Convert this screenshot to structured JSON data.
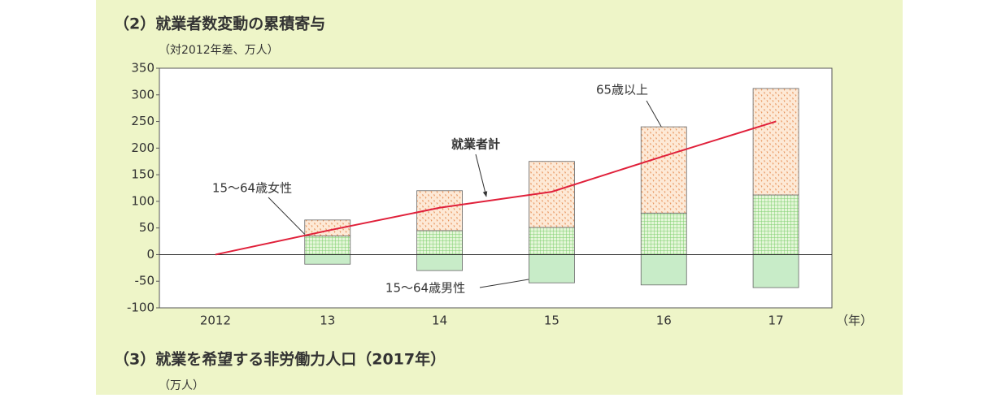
{
  "chart_data": {
    "type": "bar",
    "stacked": true,
    "title": "（2）就業者数変動の累積寄与",
    "subtitle": "（対2012年差、万人）",
    "x_unit": "（年）",
    "next_title": "（3）就業を希望する非労働力人口（2017年）",
    "next_subtitle": "（万人）",
    "categories": [
      "2012",
      "13",
      "14",
      "15",
      "16",
      "17"
    ],
    "ylim": [
      -100,
      350
    ],
    "yticks": [
      350,
      300,
      250,
      200,
      150,
      100,
      50,
      0,
      -50,
      -100
    ],
    "series": [
      {
        "name": "15〜64歳男性",
        "color": "#c8ecc8",
        "pattern": "plain",
        "values": [
          0,
          -18,
          -30,
          -53,
          -57,
          -62
        ]
      },
      {
        "name": "15〜64歳女性",
        "color": "#8fd88f",
        "pattern": "grid",
        "values": [
          0,
          35,
          45,
          51,
          78,
          112
        ]
      },
      {
        "name": "65歳以上",
        "color": "#e8935a",
        "pattern": "dots",
        "values": [
          0,
          30,
          75,
          124,
          162,
          200
        ]
      },
      {
        "name": "就業者計",
        "type": "line",
        "color": "#e0203a",
        "values": [
          0,
          45,
          88,
          118,
          185,
          250
        ]
      }
    ]
  }
}
